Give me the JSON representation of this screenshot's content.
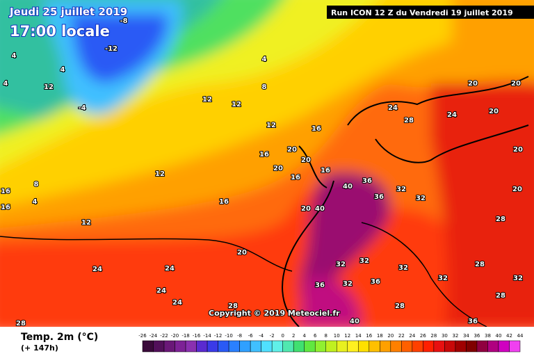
{
  "header": {
    "date": "Jeudi 25 juillet 2019",
    "time": "17:00 locale",
    "run": "Run ICON 12 Z du Vendredi 19 juillet 2019"
  },
  "copyright": "Copyright © 2019 Meteociel.fr",
  "legend": {
    "title": "Temp. 2m (°C)",
    "subtitle": "(+ 147h)",
    "ticks": [
      -26,
      -24,
      -22,
      -20,
      -18,
      -16,
      -14,
      -12,
      -10,
      -8,
      -6,
      -4,
      -2,
      0,
      2,
      4,
      6,
      8,
      10,
      12,
      14,
      16,
      18,
      20,
      22,
      24,
      26,
      28,
      30,
      32,
      34,
      36,
      38,
      40,
      42,
      44
    ],
    "colors": [
      "#3a0a3a",
      "#52105a",
      "#6a1878",
      "#7d2296",
      "#8a30b0",
      "#5a2ad0",
      "#3a3ae8",
      "#2a5af5",
      "#2a80ff",
      "#30a0ff",
      "#40c0ff",
      "#50e0ff",
      "#60f0e8",
      "#50e8b0",
      "#40e070",
      "#60e840",
      "#90f030",
      "#c0f020",
      "#e8f020",
      "#fff020",
      "#ffe000",
      "#ffc000",
      "#ffa000",
      "#ff8000",
      "#ff6000",
      "#ff4000",
      "#ff2000",
      "#e81010",
      "#c80808",
      "#a00000",
      "#800000",
      "#900040",
      "#b00080",
      "#d000c0",
      "#f040f0"
    ]
  },
  "map_labels": [
    -8,
    -12,
    -4,
    4,
    12,
    4,
    4,
    4,
    8,
    12,
    12,
    16,
    12,
    12,
    16,
    20,
    20,
    20,
    16,
    16,
    40,
    36,
    36,
    32,
    32,
    40,
    20,
    16,
    12,
    20,
    24,
    24,
    24,
    24,
    28,
    28,
    24,
    28,
    24,
    20,
    20,
    20,
    20,
    20,
    28,
    28,
    32,
    32,
    32,
    32,
    36,
    32,
    36,
    28,
    40,
    36,
    28,
    32,
    16,
    16,
    8,
    4
  ]
}
